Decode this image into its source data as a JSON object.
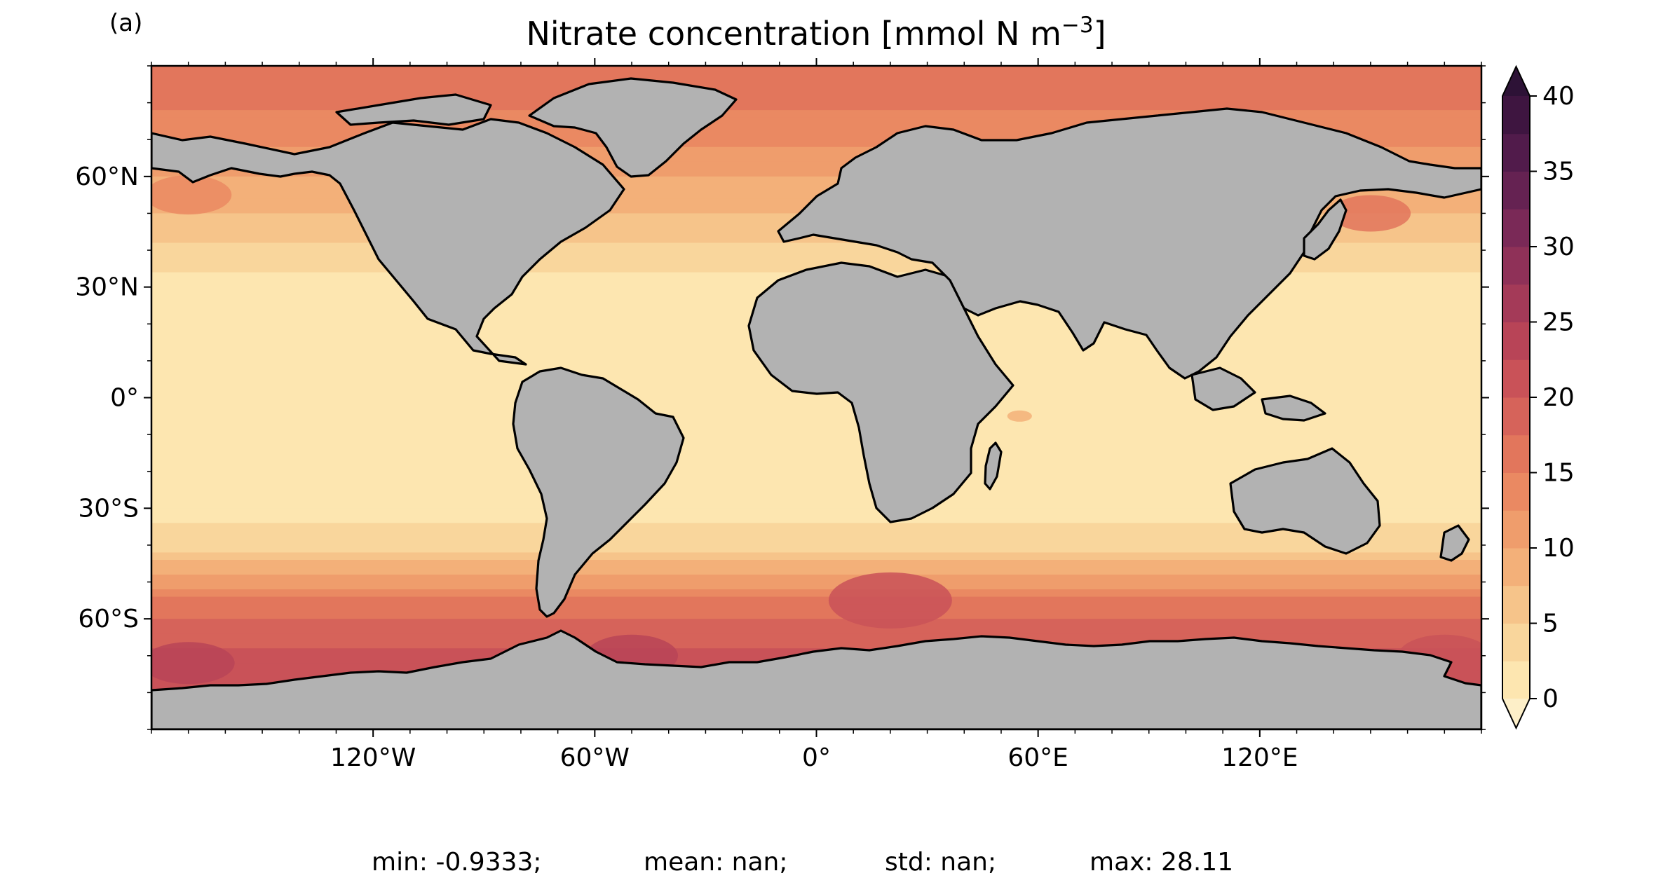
{
  "panel_label": "(a)",
  "title": {
    "main": "Nitrate concentration [mmol N m",
    "superscript": "−3",
    "closing": "]"
  },
  "map": {
    "projection": "Plate Carrée",
    "extent": {
      "lon": [
        -180,
        180
      ],
      "lat": [
        -90,
        90
      ]
    },
    "land_color": "#b2b2b2",
    "coastline_color": "#000000",
    "no_data_color": "#ffffff",
    "x_tick_labels": [
      {
        "lon": -120,
        "label": "120°W"
      },
      {
        "lon": -60,
        "label": "60°W"
      },
      {
        "lon": 0,
        "label": "0°"
      },
      {
        "lon": 60,
        "label": "60°E"
      },
      {
        "lon": 120,
        "label": "120°E"
      }
    ],
    "y_tick_labels": [
      {
        "lat": 60,
        "label": "60°N"
      },
      {
        "lat": 30,
        "label": "30°N"
      },
      {
        "lat": 0,
        "label": "0°"
      },
      {
        "lat": -30,
        "label": "30°S"
      },
      {
        "lat": -60,
        "label": "60°S"
      }
    ],
    "minor_tick_step_deg": 10
  },
  "colorbar": {
    "extend": "both",
    "min": 0,
    "max": 40,
    "step": 2.5,
    "tick_labels": [
      "0",
      "5",
      "10",
      "15",
      "20",
      "25",
      "30",
      "35",
      "40"
    ],
    "tick_values": [
      0,
      5,
      10,
      15,
      20,
      25,
      30,
      35,
      40
    ],
    "colors": [
      "#fde6b0",
      "#f9d69c",
      "#f6c48a",
      "#f3b079",
      "#ef9d6c",
      "#ea8962",
      "#e2765c",
      "#d6635a",
      "#c95258",
      "#b84457",
      "#a43a58",
      "#8f3158",
      "#7a2957",
      "#652252",
      "#511b4b",
      "#3e1540"
    ],
    "under_color": "#fdefc8",
    "over_color": "#2d1236"
  },
  "field": {
    "description_levels_by_lat": [
      {
        "lat": 80,
        "value": 15.5
      },
      {
        "lat": 70,
        "value": 13
      },
      {
        "lat": 60,
        "value": 10
      },
      {
        "lat": 50,
        "value": 7.5
      },
      {
        "lat": 40,
        "value": 4.5
      },
      {
        "lat": 30,
        "value": 1.5
      },
      {
        "lat": 0,
        "value": 1.2
      },
      {
        "lat": -30,
        "value": 1.5
      },
      {
        "lat": -40,
        "value": 4
      },
      {
        "lat": -45,
        "value": 7.5
      },
      {
        "lat": -50,
        "value": 11
      },
      {
        "lat": -55,
        "value": 15
      },
      {
        "lat": -60,
        "value": 18
      },
      {
        "lat": -65,
        "value": 19.5
      },
      {
        "lat": -70,
        "value": 20.5
      },
      {
        "lat": -75,
        "value": 22
      }
    ]
  },
  "stats": {
    "min": "min: -0.9333;",
    "mean": "mean: nan;",
    "std": "std: nan;",
    "max": "max: 28.11"
  }
}
